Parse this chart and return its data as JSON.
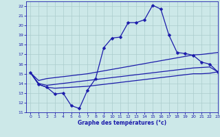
{
  "background_color": "#cce8e8",
  "grid_color": "#aacccc",
  "line_color": "#1a1aaa",
  "title": "Graphe des températures (°c)",
  "xlim": [
    -0.5,
    23
  ],
  "ylim": [
    11,
    22.5
  ],
  "xticks": [
    0,
    1,
    2,
    3,
    4,
    5,
    6,
    7,
    8,
    9,
    10,
    11,
    12,
    13,
    14,
    15,
    16,
    17,
    18,
    19,
    20,
    21,
    22,
    23
  ],
  "yticks": [
    11,
    12,
    13,
    14,
    15,
    16,
    17,
    18,
    19,
    20,
    21,
    22
  ],
  "line1_x": [
    0,
    1,
    2,
    3,
    4,
    5,
    6,
    7,
    8,
    9,
    10,
    11,
    12,
    13,
    14,
    15,
    16,
    17,
    18,
    19,
    20,
    21,
    22,
    23
  ],
  "line1_y": [
    15.1,
    13.9,
    13.6,
    12.9,
    13.0,
    11.7,
    11.4,
    13.3,
    14.5,
    17.7,
    18.7,
    18.8,
    20.3,
    20.3,
    20.6,
    22.1,
    21.7,
    19.0,
    17.2,
    17.1,
    16.9,
    16.2,
    16.0,
    15.2
  ],
  "line2_x": [
    0,
    1,
    2,
    3,
    4,
    5,
    6,
    7,
    8,
    9,
    10,
    11,
    12,
    13,
    14,
    15,
    16,
    17,
    18,
    19,
    20,
    21,
    22,
    23
  ],
  "line2_y": [
    15.1,
    14.3,
    14.5,
    14.6,
    14.7,
    14.8,
    14.9,
    15.0,
    15.15,
    15.3,
    15.45,
    15.6,
    15.75,
    15.9,
    16.05,
    16.2,
    16.35,
    16.5,
    16.65,
    16.8,
    16.95,
    17.0,
    17.1,
    17.2
  ],
  "line3_x": [
    0,
    1,
    2,
    3,
    4,
    5,
    6,
    7,
    8,
    9,
    10,
    11,
    12,
    13,
    14,
    15,
    16,
    17,
    18,
    19,
    20,
    21,
    22,
    23
  ],
  "line3_y": [
    15.1,
    14.0,
    13.8,
    13.9,
    14.0,
    14.1,
    14.2,
    14.3,
    14.4,
    14.5,
    14.6,
    14.7,
    14.8,
    14.9,
    15.0,
    15.1,
    15.2,
    15.3,
    15.4,
    15.5,
    15.6,
    15.65,
    15.7,
    15.2
  ],
  "line4_x": [
    0,
    1,
    2,
    3,
    4,
    5,
    6,
    7,
    8,
    9,
    10,
    11,
    12,
    13,
    14,
    15,
    16,
    17,
    18,
    19,
    20,
    21,
    22,
    23
  ],
  "line4_y": [
    15.1,
    13.9,
    13.6,
    13.5,
    13.55,
    13.6,
    13.65,
    13.7,
    13.8,
    13.9,
    14.0,
    14.1,
    14.2,
    14.3,
    14.4,
    14.5,
    14.6,
    14.7,
    14.8,
    14.9,
    15.0,
    15.0,
    15.05,
    15.2
  ]
}
